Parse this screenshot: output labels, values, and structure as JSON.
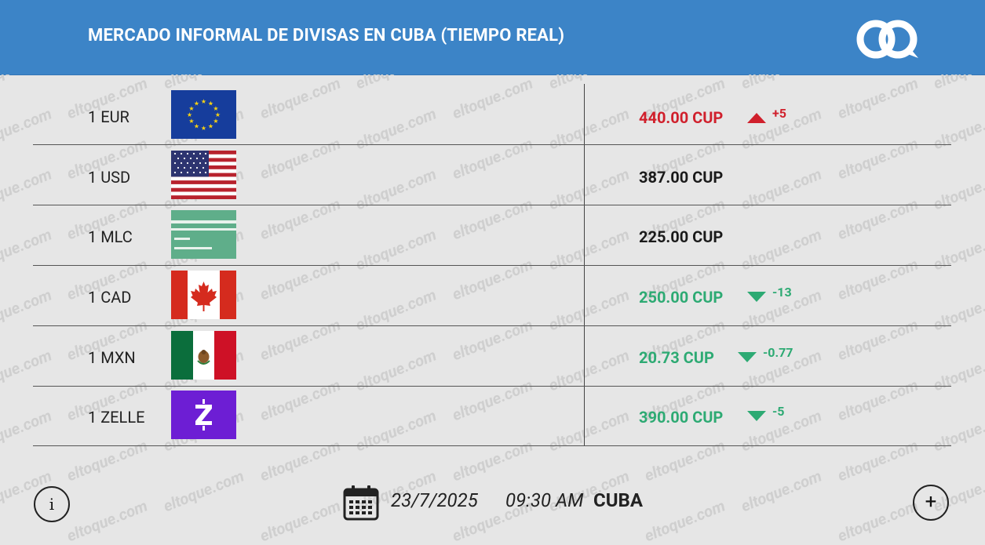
{
  "header": {
    "title": "MERCADO INFORMAL DE DIVISAS EN CUBA (TIEMPO REAL)"
  },
  "watermark": "eltoque.com",
  "rows": [
    {
      "label": "1 EUR",
      "flag": "eu-flag",
      "rate": "440.00 CUP",
      "trend": "up",
      "delta": "+5"
    },
    {
      "label": "1 USD",
      "flag": "us-flag",
      "rate": "387.00 CUP",
      "trend": "neutral",
      "delta": ""
    },
    {
      "label": "1 MLC",
      "flag": "mlc-card",
      "rate": "225.00 CUP",
      "trend": "neutral",
      "delta": ""
    },
    {
      "label": "1 CAD",
      "flag": "canada-flag",
      "rate": "250.00 CUP",
      "trend": "down",
      "delta": "-13"
    },
    {
      "label": "1 MXN",
      "flag": "mexico-flag",
      "rate": "20.73 CUP",
      "trend": "down",
      "delta": "-0.77"
    },
    {
      "label": "1 ZELLE",
      "flag": "zelle-logo",
      "rate": "390.00 CUP",
      "trend": "down",
      "delta": "-5"
    }
  ],
  "footer": {
    "info_label": "i",
    "plus_label": "+",
    "date": "23/7/2025",
    "time": "09:30 AM",
    "country": "CUBA"
  },
  "colors": {
    "header": "#3c84c7",
    "up": "#d0202c",
    "down": "#2daa73",
    "zelle": "#6d1ed4"
  }
}
